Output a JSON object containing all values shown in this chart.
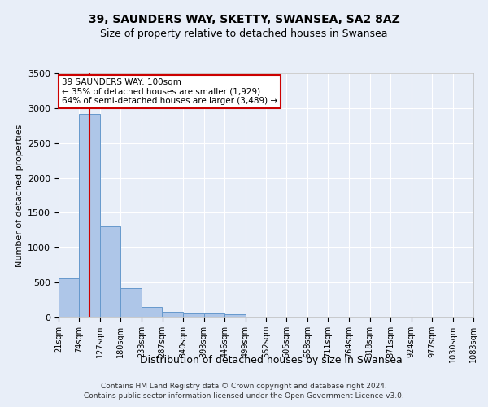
{
  "title1": "39, SAUNDERS WAY, SKETTY, SWANSEA, SA2 8AZ",
  "title2": "Size of property relative to detached houses in Swansea",
  "xlabel": "Distribution of detached houses by size in Swansea",
  "ylabel": "Number of detached properties",
  "footer1": "Contains HM Land Registry data © Crown copyright and database right 2024.",
  "footer2": "Contains public sector information licensed under the Open Government Licence v3.0.",
  "annotation_line1": "39 SAUNDERS WAY: 100sqm",
  "annotation_line2": "← 35% of detached houses are smaller (1,929)",
  "annotation_line3": "64% of semi-detached houses are larger (3,489) →",
  "bar_edges": [
    21,
    74,
    127,
    180,
    233,
    287,
    340,
    393,
    446,
    499,
    552,
    605,
    658,
    711,
    764,
    818,
    871,
    924,
    977,
    1030,
    1083
  ],
  "bar_values": [
    560,
    2920,
    1310,
    415,
    155,
    80,
    60,
    55,
    45,
    0,
    0,
    0,
    0,
    0,
    0,
    0,
    0,
    0,
    0,
    0
  ],
  "bar_color": "#aec6e8",
  "bar_edge_color": "#6699cc",
  "red_line_x": 100,
  "ylim": [
    0,
    3500
  ],
  "yticks": [
    0,
    500,
    1000,
    1500,
    2000,
    2500,
    3000,
    3500
  ],
  "annotation_box_color": "#cc0000",
  "bg_color": "#e8eef8",
  "grid_color": "#ffffff",
  "fig_width": 6.0,
  "fig_height": 5.0,
  "dpi": 100
}
